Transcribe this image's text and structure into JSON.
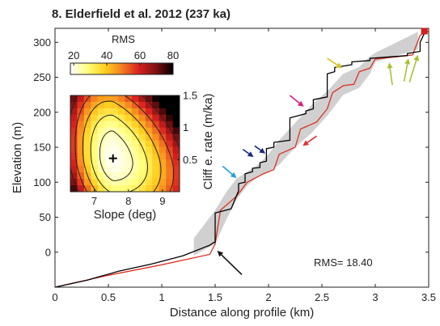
{
  "chart_data": [
    {
      "type": "line",
      "title": "8. Elderfield et al. 2012 (237 ka)",
      "xlabel": "Distance along profile (km)",
      "ylabel": "Elevation (m)",
      "xlim": [
        0,
        3.5
      ],
      "ylim": [
        -50,
        320
      ],
      "xticks": [
        0,
        0.5,
        1,
        1.5,
        2,
        2.5,
        3,
        3.5
      ],
      "xtick_labels": [
        "0",
        "0.5",
        "1",
        "1.5",
        "2",
        "2.5",
        "3",
        "3.5"
      ],
      "yticks": [
        0,
        50,
        100,
        150,
        200,
        250,
        300
      ],
      "ytick_labels": [
        "0",
        "50",
        "100",
        "150",
        "200",
        "250",
        "300"
      ],
      "annotation": "RMS= 18.40",
      "series": [
        {
          "color": "#000000",
          "x": [
            0,
            0.3,
            0.6,
            0.9,
            1.2,
            1.45,
            1.49,
            1.5,
            1.5,
            1.6,
            1.65,
            1.72,
            1.72,
            1.78,
            1.78,
            1.85,
            1.85,
            1.92,
            1.92,
            1.98,
            1.98,
            2.05,
            2.05,
            2.2,
            2.2,
            2.35,
            2.35,
            2.42,
            2.42,
            2.55,
            2.55,
            2.62,
            2.62,
            2.78,
            2.78,
            2.95,
            2.95,
            3.3,
            3.3,
            3.42,
            3.42,
            3.47
          ],
          "y": [
            -50,
            -40,
            -27,
            -17,
            -5,
            10,
            14,
            14,
            56,
            60,
            62,
            88,
            98,
            100,
            112,
            115,
            120,
            121,
            128,
            130,
            148,
            150,
            157,
            160,
            192,
            198,
            202,
            205,
            218,
            222,
            255,
            258,
            264,
            268,
            272,
            274,
            277,
            281,
            284,
            287,
            300,
            316
          ]
        },
        {
          "color": "#e03020",
          "x": [
            0,
            0.5,
            1.0,
            1.45,
            1.5,
            1.55,
            1.7,
            1.8,
            1.95,
            2.05,
            2.1,
            2.25,
            2.3,
            2.45,
            2.55,
            2.6,
            2.7,
            2.8,
            2.85,
            2.95,
            3.0,
            3.35,
            3.42,
            3.5
          ],
          "y": [
            -50,
            -33,
            -18,
            -3,
            12,
            60,
            80,
            100,
            112,
            118,
            140,
            150,
            176,
            186,
            205,
            228,
            238,
            240,
            258,
            263,
            276,
            282,
            310,
            316
          ]
        }
      ],
      "band": {
        "color": "#d0d0d0",
        "x": [
          1.3,
          1.5,
          1.6,
          1.7,
          1.8,
          1.9,
          2.0,
          2.1,
          2.25,
          2.4,
          2.55,
          2.7,
          2.85,
          2.95,
          3.0,
          3.4
        ],
        "lower": [
          -5,
          12,
          45,
          75,
          95,
          108,
          114,
          125,
          150,
          170,
          195,
          225,
          235,
          255,
          272,
          290
        ],
        "upper": [
          20,
          60,
          85,
          105,
          115,
          125,
          140,
          160,
          185,
          210,
          230,
          255,
          265,
          280,
          285,
          315
        ]
      },
      "arrows": [
        {
          "color": "#111111",
          "tail": [
            1.75,
            -32
          ],
          "head": [
            1.52,
            2
          ]
        },
        {
          "color": "#1aa0d8",
          "tail": [
            1.57,
            123
          ],
          "head": [
            1.7,
            106
          ]
        },
        {
          "color": "#1a2a80",
          "tail": [
            1.76,
            147
          ],
          "head": [
            1.86,
            136
          ]
        },
        {
          "color": "#1a2a80",
          "tail": [
            1.87,
            152
          ],
          "head": [
            1.97,
            141
          ]
        },
        {
          "color": "#e0187a",
          "tail": [
            2.2,
            224
          ],
          "head": [
            2.33,
            208
          ]
        },
        {
          "color": "#e03030",
          "tail": [
            2.45,
            166
          ],
          "head": [
            2.32,
            152
          ]
        },
        {
          "color": "#d8c020",
          "tail": [
            2.55,
            277
          ],
          "head": [
            2.69,
            263
          ]
        },
        {
          "color": "#a8c030",
          "tail": [
            3.16,
            239
          ],
          "head": [
            3.13,
            271
          ]
        },
        {
          "color": "#a8c030",
          "tail": [
            3.27,
            244
          ],
          "head": [
            3.31,
            277
          ]
        },
        {
          "color": "#a8c030",
          "tail": [
            3.32,
            243
          ],
          "head": [
            3.4,
            282
          ]
        }
      ],
      "endpoint_marker": {
        "x": 3.46,
        "y": 316,
        "color": "#d02020"
      }
    },
    {
      "type": "heatmap",
      "xlabel": "Slope (deg)",
      "ylabel": "Cliff e. rate (m/ka)",
      "xlim": [
        6.3,
        9.5
      ],
      "ylim": [
        0.0,
        1.5
      ],
      "xticks": [
        7,
        8,
        9
      ],
      "xtick_labels": [
        "7",
        "8",
        "9"
      ],
      "yticks": [
        0.5,
        1,
        1.5
      ],
      "ytick_labels": [
        "0.5",
        "1",
        "1.5"
      ],
      "colorbar": {
        "title": "RMS",
        "range": [
          18,
          80
        ],
        "ticks": [
          20,
          40,
          60,
          80
        ],
        "tick_labels": [
          "20",
          "40",
          "60",
          "80"
        ],
        "colors": [
          "#ffffff",
          "#ffff80",
          "#ffd020",
          "#f58020",
          "#d82020",
          "#801010",
          "#000000"
        ]
      },
      "best_fit": {
        "slope": 7.55,
        "rate": 0.52
      },
      "contour_levels": [
        24,
        32,
        42,
        54,
        68
      ]
    }
  ]
}
